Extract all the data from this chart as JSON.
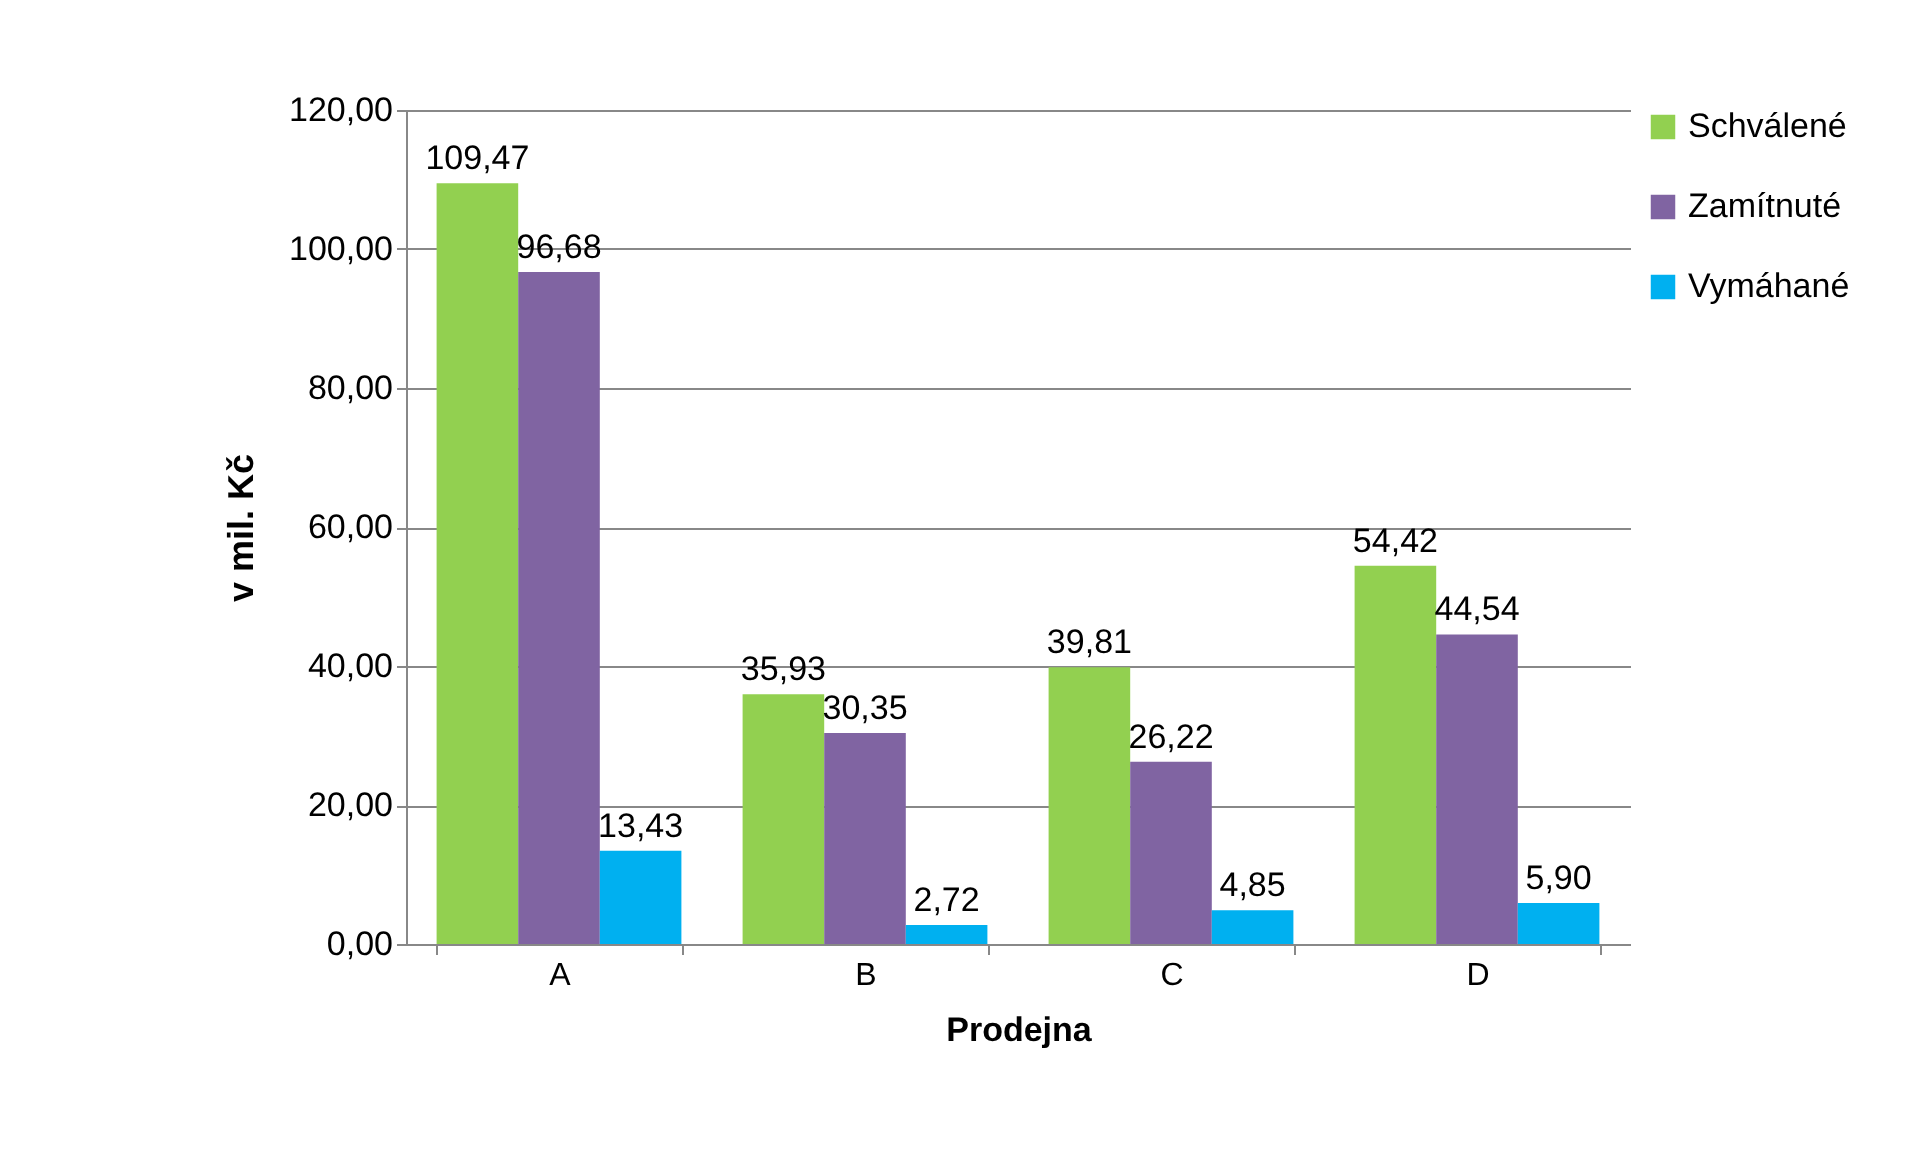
{
  "chart_data": {
    "type": "bar",
    "xlabel": "Prodejna",
    "ylabel": "v mil. Kč",
    "categories": [
      "A",
      "B",
      "C",
      "D"
    ],
    "series": [
      {
        "name": "Schválené",
        "color": "#92d050",
        "values": [
          109.47,
          35.93,
          39.81,
          54.42
        ],
        "value_labels": [
          "109,47",
          "35,93",
          "39,81",
          "54,42"
        ]
      },
      {
        "name": "Zamítnuté",
        "color": "#8064a2",
        "values": [
          96.68,
          30.35,
          26.22,
          44.54
        ],
        "value_labels": [
          "96,68",
          "30,35",
          "26,22",
          "44,54"
        ]
      },
      {
        "name": "Vymáhané",
        "color": "#00b0f0",
        "values": [
          13.43,
          2.72,
          4.85,
          5.9
        ],
        "value_labels": [
          "13,43",
          "2,72",
          "4,85",
          "5,90"
        ]
      }
    ],
    "ylim": [
      0,
      120
    ],
    "yticks": [
      {
        "value": 0,
        "label": "0,00"
      },
      {
        "value": 20,
        "label": "20,00"
      },
      {
        "value": 40,
        "label": "40,00"
      },
      {
        "value": 60,
        "label": "60,00"
      },
      {
        "value": 80,
        "label": "80,00"
      },
      {
        "value": 100,
        "label": "100,00"
      },
      {
        "value": 120,
        "label": "120,00"
      }
    ],
    "grid": "y",
    "legend": "right"
  }
}
